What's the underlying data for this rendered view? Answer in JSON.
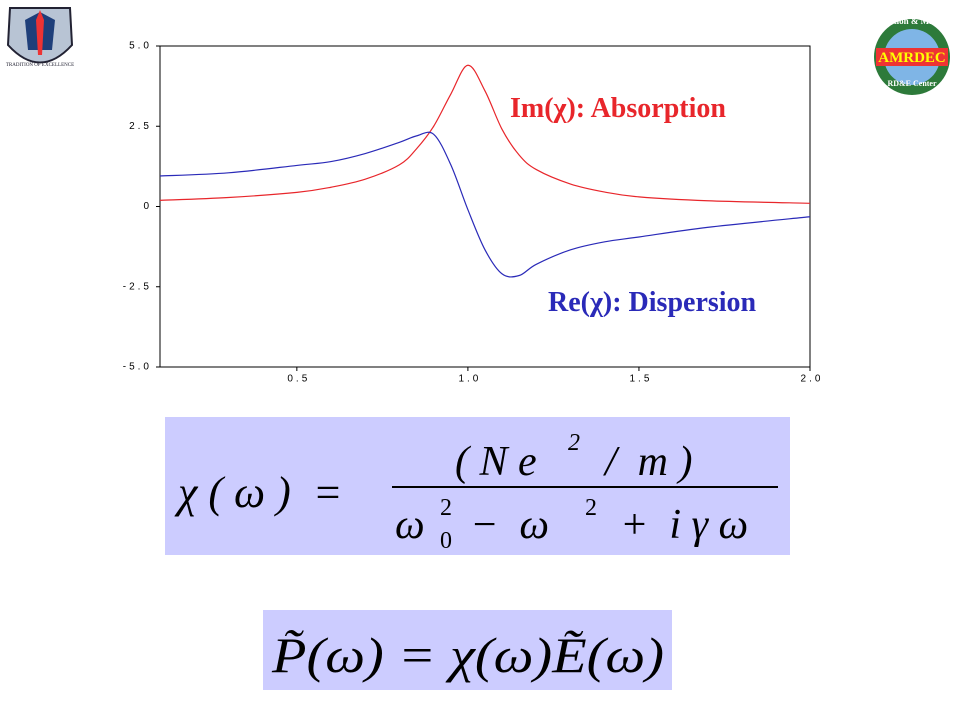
{
  "chart_data": {
    "type": "line",
    "x": [
      0.1,
      0.3,
      0.5,
      0.6,
      0.7,
      0.8,
      0.85,
      0.9,
      0.95,
      1.0,
      1.05,
      1.1,
      1.15,
      1.2,
      1.3,
      1.4,
      1.5,
      1.7,
      2.0
    ],
    "series": [
      {
        "name": "Im(χ): Absorption",
        "color": "#e8262b",
        "values": [
          0.19,
          0.28,
          0.44,
          0.6,
          0.85,
          1.3,
          1.8,
          2.5,
          3.5,
          4.4,
          3.6,
          2.4,
          1.6,
          1.15,
          0.7,
          0.45,
          0.3,
          0.18,
          0.1
        ]
      },
      {
        "name": "Re(χ): Dispersion",
        "color": "#2a2ab8",
        "values": [
          0.95,
          1.05,
          1.28,
          1.4,
          1.65,
          2.0,
          2.2,
          2.25,
          1.3,
          -0.1,
          -1.35,
          -2.1,
          -2.15,
          -1.8,
          -1.35,
          -1.1,
          -0.95,
          -0.65,
          -0.32
        ]
      }
    ],
    "xlim": [
      0.1,
      2.0
    ],
    "xticks": [
      0.5,
      {
        "value": 1,
        "label": "1.0"
      },
      1.5,
      {
        "value": 2,
        "label": "2.0"
      }
    ],
    "ylim": [
      -5,
      5
    ],
    "yticks": [
      {
        "value": -5,
        "label": "-5.0"
      },
      -2.5,
      0,
      2.5,
      {
        "value": 5,
        "label": "5.0"
      }
    ],
    "grid": false
  },
  "logos": {
    "left": "TRADITION OF EXCELLENCE",
    "right_top": "Aviation & Missile",
    "right_main": "AMRDEC",
    "right_bottom": "RD&E Center"
  },
  "equation_1": {
    "lhs": "χ ( ω )  =",
    "numerator": {
      "base": "( N e",
      "sup": "2",
      "tail": "/  m )"
    },
    "denominator": {
      "omega": "ω",
      "sub": "0",
      "sup1": "2",
      "mid": "−  ω",
      "sup2": "2",
      "tail": "+  i γ ω"
    }
  },
  "equation_2": "P̃(ω) = χ(ω)Ẽ(ω)"
}
